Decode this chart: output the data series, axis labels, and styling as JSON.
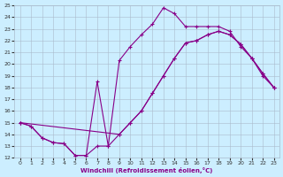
{
  "xlabel": "Windchill (Refroidissement éolien,°C)",
  "bg_color": "#cceeff",
  "grid_color": "#aabbcc",
  "line_color": "#880088",
  "xlim": [
    -0.5,
    23.5
  ],
  "ylim": [
    12,
    25
  ],
  "xticks": [
    0,
    1,
    2,
    3,
    4,
    5,
    6,
    7,
    8,
    9,
    10,
    11,
    12,
    13,
    14,
    15,
    16,
    17,
    18,
    19,
    20,
    21,
    22,
    23
  ],
  "yticks": [
    12,
    13,
    14,
    15,
    16,
    17,
    18,
    19,
    20,
    21,
    22,
    23,
    24,
    25
  ],
  "line1_x": [
    0,
    1,
    2,
    3,
    4,
    5,
    6,
    7,
    8,
    9,
    10,
    11,
    12,
    13,
    14,
    15,
    16,
    17,
    18,
    19,
    20,
    21,
    22,
    23
  ],
  "line1_y": [
    15.0,
    14.7,
    13.7,
    13.3,
    13.2,
    12.2,
    12.2,
    18.5,
    13.0,
    20.3,
    21.5,
    22.5,
    23.4,
    24.8,
    24.3,
    23.2,
    23.2,
    23.2,
    23.2,
    22.8,
    21.5,
    20.5,
    19.0,
    18.0
  ],
  "line2_x": [
    0,
    1,
    2,
    3,
    4,
    5,
    6,
    7,
    8,
    9,
    10,
    11,
    12,
    13,
    14,
    15,
    16,
    17,
    18,
    19,
    20,
    21,
    22,
    23
  ],
  "line2_y": [
    15.0,
    14.7,
    13.7,
    13.3,
    13.2,
    12.2,
    12.2,
    13.0,
    13.0,
    14.0,
    15.0,
    16.0,
    17.5,
    19.0,
    20.5,
    21.8,
    22.0,
    22.5,
    22.8,
    22.5,
    21.7,
    20.5,
    19.2,
    18.0
  ],
  "line3_x": [
    0,
    9,
    10,
    11,
    12,
    13,
    14,
    15,
    16,
    17,
    18,
    19,
    20,
    21,
    22,
    23
  ],
  "line3_y": [
    15.0,
    14.0,
    15.0,
    16.0,
    17.5,
    19.0,
    20.5,
    21.8,
    22.0,
    22.5,
    22.8,
    22.5,
    21.7,
    20.5,
    19.2,
    18.0
  ]
}
